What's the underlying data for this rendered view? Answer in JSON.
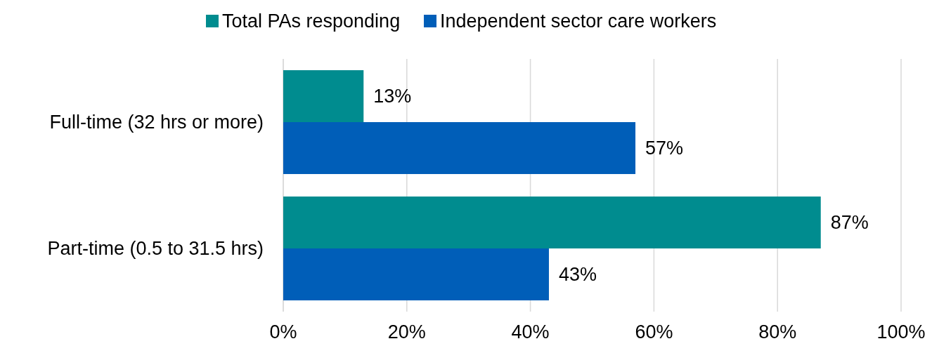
{
  "chart_data": {
    "type": "bar",
    "orientation": "horizontal",
    "categories": [
      "Full-time (32 hrs or more)",
      "Part-time (0.5 to 31.5 hrs)"
    ],
    "series": [
      {
        "name": "Total PAs responding",
        "color": "#008c8f",
        "values": [
          13,
          87
        ],
        "value_labels": [
          "13%",
          "87%"
        ]
      },
      {
        "name": "Independent sector care workers",
        "color": "#005eb8",
        "values": [
          57,
          43
        ],
        "value_labels": [
          "57%",
          "43%"
        ]
      }
    ],
    "xlim": [
      0,
      100
    ],
    "xticks": [
      {
        "value": 0,
        "label": "0%"
      },
      {
        "value": 20,
        "label": "20%"
      },
      {
        "value": 40,
        "label": "40%"
      },
      {
        "value": 60,
        "label": "60%"
      },
      {
        "value": 80,
        "label": "80%"
      },
      {
        "value": 100,
        "label": "100%"
      }
    ],
    "grid": "x",
    "legend": "top"
  }
}
